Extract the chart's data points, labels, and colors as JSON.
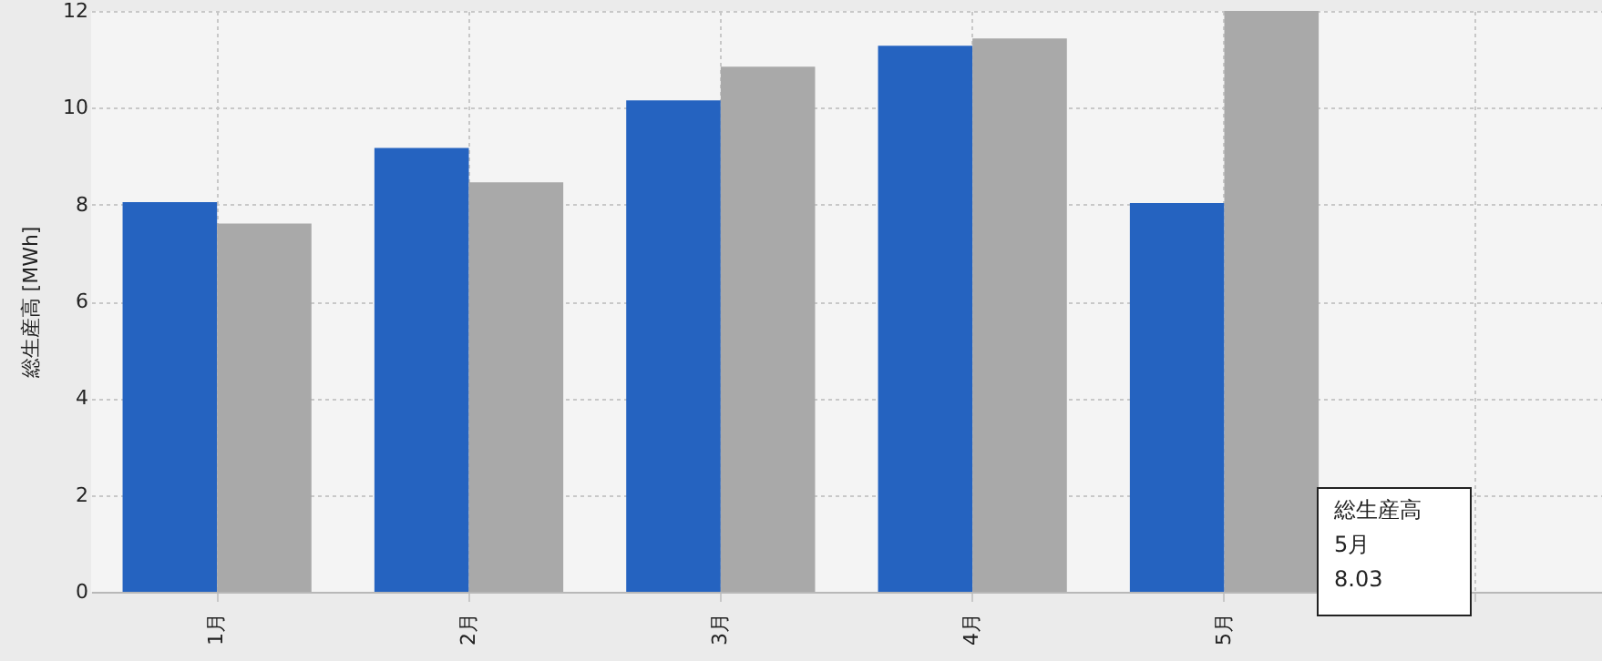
{
  "chart_data": {
    "type": "bar",
    "ylabel": "総生産高 [MWh]",
    "categories": [
      "1月",
      "2月",
      "3月",
      "4月",
      "5月",
      null
    ],
    "series": [
      {
        "color": "#2563c0",
        "values": [
          8.05,
          9.17,
          10.15,
          11.28,
          8.03,
          null
        ]
      },
      {
        "color": "#a9a9a9",
        "values": [
          7.61,
          8.46,
          10.85,
          11.43,
          12.0,
          null
        ]
      }
    ],
    "ylim": [
      0,
      12
    ],
    "yticks": [
      0,
      2,
      4,
      6,
      8,
      10,
      12
    ],
    "grid": true,
    "annotations": [
      "総生産高\n5月\n8.03"
    ]
  }
}
